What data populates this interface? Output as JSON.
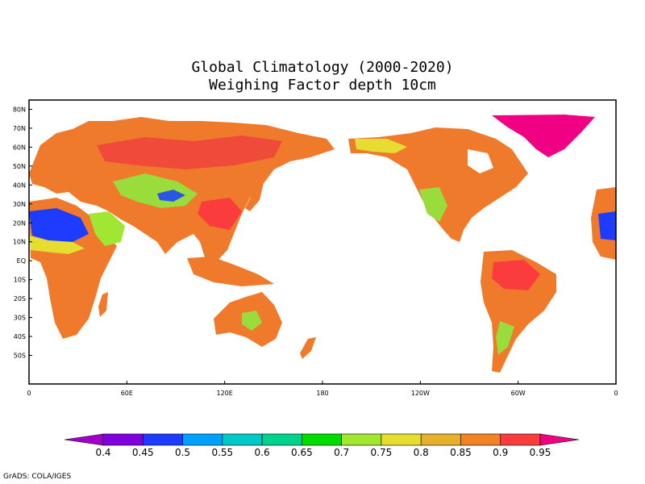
{
  "title_line1": "Global Climatology (2000-2020)",
  "title_line2": "Weighing Factor depth 10cm",
  "lat_labels": [
    "80N",
    "70N",
    "60N",
    "50N",
    "40N",
    "30N",
    "20N",
    "10N",
    "EQ",
    "10S",
    "20S",
    "30S",
    "40S",
    "50S"
  ],
  "lat_values": [
    80,
    70,
    60,
    50,
    40,
    30,
    20,
    10,
    0,
    -10,
    -20,
    -30,
    -40,
    -50
  ],
  "lon_labels": [
    "0",
    "60E",
    "120E",
    "180",
    "120W",
    "60W",
    "0"
  ],
  "lon_values": [
    0,
    60,
    120,
    180,
    240,
    300,
    360
  ],
  "colorbar": {
    "labels": [
      "0.4",
      "0.45",
      "0.5",
      "0.55",
      "0.6",
      "0.65",
      "0.7",
      "0.75",
      "0.8",
      "0.85",
      "0.9",
      "0.95"
    ],
    "colors": [
      "#a000c8",
      "#8200dc",
      "#1e3cff",
      "#00a0ff",
      "#00c8c8",
      "#00d28c",
      "#00dc00",
      "#a0e632",
      "#e6dc32",
      "#e6af2d",
      "#f08228",
      "#fa3c3c",
      "#f00082"
    ]
  },
  "footer": "GrADS: COLA/IGES"
}
